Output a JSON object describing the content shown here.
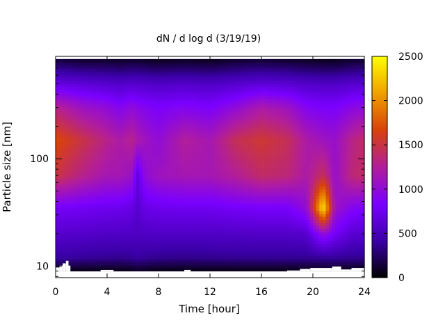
{
  "chart_data": {
    "type": "heatmap",
    "title": "dN / d log d (3/19/19)",
    "xlabel": "Time [hour]",
    "ylabel": "Particle size [nm]",
    "xlim": [
      0,
      24
    ],
    "ylim": [
      7.8,
      900
    ],
    "y_scale": "log",
    "data_ylim": [
      9,
      850
    ],
    "x_ticks": [
      "0",
      "4",
      "8",
      "12",
      "16",
      "20",
      "24"
    ],
    "x_tick_values": [
      0,
      4,
      8,
      12,
      16,
      20,
      24
    ],
    "y_ticks": [
      "10",
      "100"
    ],
    "y_tick_values": [
      10,
      100
    ],
    "colorbar": {
      "range": [
        0,
        2500
      ],
      "ticks": [
        "0",
        "500",
        "1000",
        "1500",
        "2000",
        "2500"
      ],
      "tick_values": [
        0,
        500,
        1000,
        1500,
        2000,
        2500
      ],
      "colormap": [
        "#000000",
        "#3b00a8",
        "#7a00ff",
        "#b21e9a",
        "#d8420a",
        "#f0a000",
        "#ffff00"
      ]
    },
    "hour_grid": [
      0,
      2,
      4,
      5,
      6,
      6.3,
      7,
      8,
      10,
      12,
      14,
      16,
      18,
      19.5,
      20.8,
      21.7,
      23,
      24
    ],
    "size_grid_nm": [
      9,
      12,
      20,
      35,
      70,
      150,
      300,
      500,
      850
    ],
    "concentration": [
      [
        50,
        40,
        40,
        40,
        60,
        80,
        60,
        40,
        40,
        40,
        40,
        40,
        40,
        40,
        40,
        40,
        40,
        40
      ],
      [
        400,
        380,
        360,
        350,
        370,
        400,
        370,
        350,
        340,
        350,
        360,
        360,
        360,
        360,
        380,
        380,
        360,
        350
      ],
      [
        600,
        580,
        560,
        560,
        560,
        540,
        560,
        560,
        560,
        560,
        560,
        570,
        570,
        600,
        1000,
        800,
        620,
        600
      ],
      [
        800,
        780,
        750,
        740,
        700,
        600,
        720,
        750,
        760,
        760,
        800,
        820,
        820,
        1000,
        2400,
        1100,
        900,
        850
      ],
      [
        1500,
        1300,
        1150,
        1150,
        1050,
        650,
        1000,
        1100,
        1150,
        1150,
        1250,
        1400,
        1350,
        1200,
        1450,
        1050,
        1350,
        1400
      ],
      [
        1700,
        1500,
        1300,
        1200,
        1300,
        1200,
        1100,
        1000,
        1250,
        1150,
        1450,
        1550,
        1450,
        1200,
        1100,
        1050,
        1300,
        1400
      ],
      [
        1300,
        1100,
        1000,
        900,
        1000,
        950,
        900,
        850,
        900,
        850,
        1000,
        1200,
        1100,
        900,
        850,
        850,
        950,
        1000
      ],
      [
        700,
        650,
        600,
        580,
        600,
        600,
        580,
        560,
        580,
        560,
        600,
        650,
        620,
        580,
        560,
        560,
        600,
        620
      ],
      [
        150,
        100,
        100,
        80,
        100,
        100,
        80,
        60,
        80,
        60,
        100,
        120,
        100,
        80,
        60,
        60,
        100,
        120
      ]
    ],
    "masked_gaps": [
      {
        "x0": 0.0,
        "x1": 0.3,
        "bottom": 9.7
      },
      {
        "x0": 0.3,
        "x1": 0.55,
        "bottom": 10.1
      },
      {
        "x0": 0.55,
        "x1": 0.8,
        "bottom": 10.6
      },
      {
        "x0": 0.8,
        "x1": 1.0,
        "bottom": 11.2
      },
      {
        "x0": 1.0,
        "x1": 1.15,
        "bottom": 10.1
      },
      {
        "x0": 1.15,
        "x1": 3.5,
        "bottom": 8.7
      },
      {
        "x0": 3.5,
        "x1": 4.5,
        "bottom": 9.2
      },
      {
        "x0": 4.5,
        "x1": 10.0,
        "bottom": 8.7
      },
      {
        "x0": 10.0,
        "x1": 10.5,
        "bottom": 9.2
      },
      {
        "x0": 10.5,
        "x1": 13.5,
        "bottom": 8.7
      },
      {
        "x0": 13.5,
        "x1": 18.0,
        "bottom": 8.8
      },
      {
        "x0": 18.0,
        "x1": 19.0,
        "bottom": 9.1
      },
      {
        "x0": 19.0,
        "x1": 19.8,
        "bottom": 9.4
      },
      {
        "x0": 19.8,
        "x1": 21.5,
        "bottom": 9.6
      },
      {
        "x0": 21.5,
        "x1": 22.2,
        "bottom": 9.9
      },
      {
        "x0": 22.2,
        "x1": 23.0,
        "bottom": 9.3
      },
      {
        "x0": 23.0,
        "x1": 24.0,
        "bottom": 9.6
      }
    ]
  }
}
